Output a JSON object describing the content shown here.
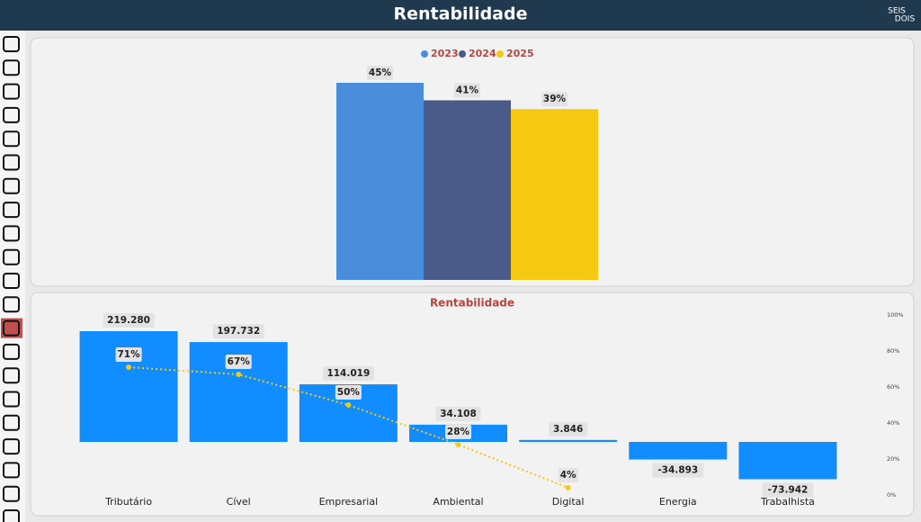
{
  "header": {
    "title": "Rentabilidade",
    "logo": [
      "SEIS",
      "DOIS"
    ]
  },
  "chart_data": [
    {
      "type": "grouped-bar",
      "categories": [
        null
      ],
      "series": [
        {
          "name": "2023",
          "color": "#4a8edb",
          "values": [
            45
          ],
          "value_labels": [
            "45%"
          ]
        },
        {
          "name": "2024",
          "color": "#4a5b8a",
          "values": [
            41
          ],
          "value_labels": [
            "41%"
          ]
        },
        {
          "name": "2025",
          "color": "#f5c911",
          "values": [
            39
          ],
          "value_labels": [
            "39%"
          ]
        }
      ],
      "legend": "top"
    },
    {
      "type": "combo",
      "title": "Rentabilidade",
      "categories": [
        "Tributário",
        "Cível",
        "Empresarial",
        "Ambiental",
        "Digital",
        "Energia",
        "Trabalhista"
      ],
      "series": [
        {
          "type": "bar",
          "color": "#118dff",
          "values": [
            219280,
            197732,
            114019,
            34108,
            3846,
            -34893,
            -73942
          ],
          "value_labels": [
            "219.280",
            "197.732",
            "114.019",
            "34.108",
            "3.846",
            "-34.893",
            "-73.942"
          ]
        },
        {
          "type": "line",
          "axis": "y2",
          "color": "#f5c911",
          "values": [
            71,
            67,
            50,
            28,
            4,
            null,
            null
          ],
          "value_labels": [
            "71%",
            "67%",
            "50%",
            "28%",
            "4%",
            null,
            null
          ]
        }
      ],
      "y2lim": [
        0,
        100
      ],
      "y2ticks": [
        {
          "value": 0,
          "label": "0%"
        },
        {
          "value": 20,
          "label": "20%"
        },
        {
          "value": 40,
          "label": "40%"
        },
        {
          "value": 60,
          "label": "60%"
        },
        {
          "value": 80,
          "label": "80%"
        },
        {
          "value": 100,
          "label": "100%"
        }
      ]
    }
  ]
}
